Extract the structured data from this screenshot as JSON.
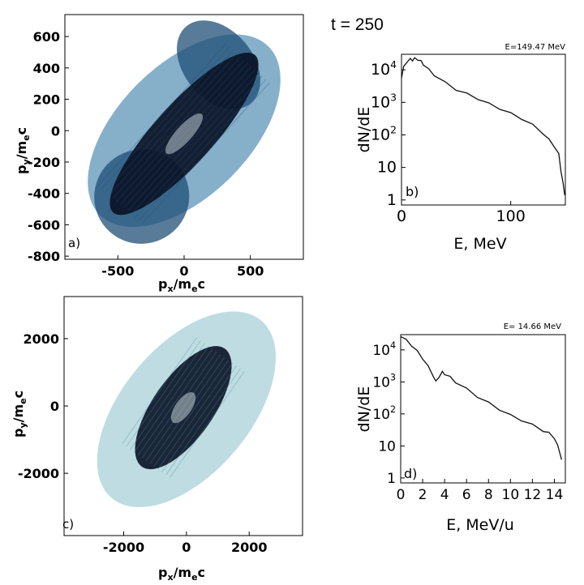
{
  "page_title": "t = 250",
  "chart_data": [
    {
      "id": "a",
      "type": "scatter",
      "panel_label": "a)",
      "xlabel": "p_x/m_ec",
      "ylabel": "p_y/m_ec",
      "xlim": [
        -900,
        900
      ],
      "ylim": [
        -820,
        740
      ],
      "xticks": [
        "-500",
        "0",
        "500"
      ],
      "xtick_values": [
        -500,
        0,
        500
      ],
      "yticks": [
        "600",
        "400",
        "200",
        "0",
        "-200",
        "-400",
        "-600",
        "-800"
      ],
      "ytick_values": [
        600,
        400,
        200,
        0,
        -200,
        -400,
        -600,
        -800
      ],
      "colors": {
        "dense": "#0b1226",
        "mid": "#1f4f75",
        "light": "#5d94b8",
        "ring": "#dfeef5"
      },
      "regions": [
        {
          "name": "core",
          "cx": 0,
          "cy": -20,
          "rx": 800,
          "ry": 190,
          "angle_deg": 48,
          "density": 1.0
        },
        {
          "name": "outer-lobe-upper",
          "cx": 260,
          "cy": 420,
          "rx": 260,
          "ry": 320,
          "angle_deg": 40,
          "density": 0.6
        },
        {
          "name": "outer-lobe-lower",
          "cx": -320,
          "cy": -420,
          "rx": 360,
          "ry": 300,
          "angle_deg": 35,
          "density": 0.55
        },
        {
          "name": "halo",
          "cx": 0,
          "cy": 0,
          "rx": 900,
          "ry": 420,
          "angle_deg": 45,
          "density": 0.3
        }
      ]
    },
    {
      "id": "b",
      "type": "line",
      "panel_label": "b)",
      "annotation": "E=149.47 MeV",
      "xlabel": "E, MeV",
      "ylabel": "dN/dE",
      "yscale": "log",
      "xlim": [
        0,
        150
      ],
      "ylim": [
        0.7,
        30000
      ],
      "xticks": [
        "0",
        "100"
      ],
      "xtick_values": [
        0,
        100
      ],
      "yticks": [
        "10^4",
        "10^3",
        "10^2",
        "10",
        "1"
      ],
      "ytick_values": [
        10000,
        1000,
        100,
        10,
        1
      ],
      "series": [
        {
          "x": [
            0,
            2,
            5,
            8,
            10,
            12,
            15,
            18,
            20,
            25,
            30,
            40,
            50,
            60,
            70,
            80,
            90,
            100,
            110,
            120,
            130,
            135,
            140,
            144,
            146,
            148,
            149.47
          ],
          "y": [
            6000,
            12000,
            18000,
            21000,
            20000,
            22000,
            21000,
            18000,
            15000,
            10000,
            7000,
            4000,
            2500,
            1800,
            1300,
            900,
            650,
            450,
            320,
            200,
            110,
            70,
            45,
            25,
            8,
            3,
            1.5
          ]
        }
      ]
    },
    {
      "id": "c",
      "type": "scatter",
      "panel_label": "c)",
      "xlabel": "p_x/m_ec",
      "ylabel": "p_y/m_ec",
      "xlim": [
        -3900,
        3700
      ],
      "ylim": [
        -3850,
        3250
      ],
      "xticks": [
        "-2000",
        "0",
        "2000"
      ],
      "xtick_values": [
        -2000,
        0,
        2000
      ],
      "yticks": [
        "2000",
        "0",
        "-2000"
      ],
      "ytick_values": [
        2000,
        0,
        -2000
      ],
      "colors": {
        "dense": "#0c1628",
        "mid": "#4d8aa0",
        "light": "#a8d0d8",
        "ring": "#dff0f2"
      },
      "regions": [
        {
          "name": "core",
          "cx": -100,
          "cy": -50,
          "rx": 2300,
          "ry": 900,
          "angle_deg": 55,
          "density": 1.0
        },
        {
          "name": "halo",
          "cx": 0,
          "cy": -100,
          "rx": 3700,
          "ry": 1900,
          "angle_deg": 50,
          "density": 0.35
        }
      ]
    },
    {
      "id": "d",
      "type": "line",
      "panel_label": "d)",
      "annotation": "E= 14.66 MeV",
      "xlabel": "E, MeV/u",
      "ylabel": "dN/dE",
      "yscale": "log",
      "xlim": [
        0,
        15
      ],
      "ylim": [
        0.7,
        30000
      ],
      "xticks": [
        "0",
        "2",
        "4",
        "6",
        "8",
        "10",
        "12",
        "14"
      ],
      "xtick_values": [
        0,
        2,
        4,
        6,
        8,
        10,
        12,
        14
      ],
      "yticks": [
        "10^4",
        "10^3",
        "10^2",
        "10",
        "1"
      ],
      "ytick_values": [
        10000,
        1000,
        100,
        10,
        1
      ],
      "series": [
        {
          "x": [
            0,
            0.5,
            1,
            1.5,
            2,
            2.5,
            3,
            3.2,
            3.5,
            3.8,
            4,
            4.5,
            5,
            6,
            7,
            8,
            9,
            10,
            11,
            12,
            13,
            13.5,
            14,
            14.3,
            14.66
          ],
          "y": [
            28000,
            20000,
            14000,
            9000,
            5500,
            3000,
            1500,
            1000,
            1500,
            2000,
            1800,
            1400,
            1000,
            600,
            350,
            220,
            140,
            90,
            65,
            45,
            30,
            25,
            18,
            10,
            4
          ]
        }
      ]
    }
  ]
}
